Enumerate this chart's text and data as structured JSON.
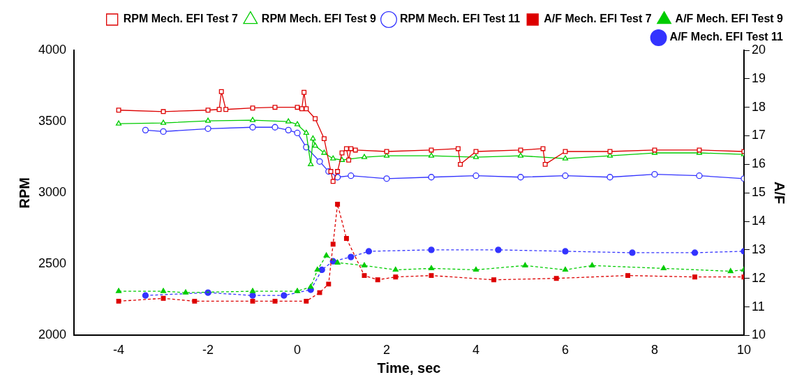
{
  "chart_data": {
    "type": "line",
    "xlabel": "Time, sec",
    "ylabel": "RPM",
    "y2label": "A/F",
    "xlim": [
      -5,
      10
    ],
    "xticks": [
      -4,
      -2,
      0,
      2,
      4,
      6,
      8,
      10
    ],
    "ylim": [
      2000,
      4000
    ],
    "yticks": [
      2000,
      2500,
      3000,
      3500,
      4000
    ],
    "y2lim": [
      10,
      20
    ],
    "y2ticks": [
      10,
      11,
      12,
      13,
      14,
      15,
      16,
      17,
      18,
      19,
      20
    ],
    "grid": false,
    "legend": "top right",
    "series": [
      {
        "name": "RPM Mech. EFI Test 7",
        "color": "#dd0000",
        "marker": "square",
        "line_style": "solid",
        "x": [
          -4,
          -3,
          -2,
          -1.75,
          -1.7,
          -1.6,
          -1,
          -0.5,
          0,
          0.1,
          0.15,
          0.2,
          0.4,
          0.6,
          0.75,
          0.8,
          0.9,
          1.0,
          1.1,
          1.15,
          1.2,
          1.3,
          2,
          3,
          3.6,
          3.65,
          4,
          5,
          5.5,
          5.55,
          6,
          7,
          8,
          9,
          10
        ],
        "values": [
          3580,
          3570,
          3580,
          3585,
          3710,
          3585,
          3595,
          3600,
          3600,
          3590,
          3705,
          3590,
          3520,
          3380,
          3150,
          3080,
          3150,
          3280,
          3310,
          3230,
          3310,
          3300,
          3290,
          3300,
          3310,
          3200,
          3290,
          3300,
          3310,
          3200,
          3290,
          3290,
          3300,
          3300,
          3290
        ]
      },
      {
        "name": "RPM Mech. EFI Test 9",
        "color": "#00cc00",
        "marker": "triangle",
        "line_style": "solid",
        "x": [
          -4,
          -3,
          -2,
          -1,
          -0.2,
          0,
          0.2,
          0.3,
          0.35,
          0.4,
          0.6,
          0.8,
          1,
          1.5,
          2,
          3,
          4,
          5,
          6,
          7,
          8,
          9,
          10
        ],
        "values": [
          3485,
          3490,
          3505,
          3510,
          3500,
          3480,
          3420,
          3200,
          3380,
          3330,
          3280,
          3240,
          3230,
          3250,
          3260,
          3260,
          3250,
          3260,
          3240,
          3260,
          3280,
          3280,
          3270
        ]
      },
      {
        "name": "RPM Mech. EFI Test 11",
        "color": "#3333ff",
        "marker": "circle",
        "line_style": "solid",
        "x": [
          -3.4,
          -3,
          -2,
          -1,
          -0.5,
          -0.2,
          0,
          0.2,
          0.5,
          0.7,
          0.9,
          1.2,
          2,
          3,
          4,
          5,
          6,
          7,
          8,
          9,
          10
        ],
        "values": [
          3440,
          3430,
          3450,
          3460,
          3460,
          3440,
          3420,
          3320,
          3220,
          3150,
          3110,
          3120,
          3100,
          3110,
          3120,
          3110,
          3120,
          3110,
          3130,
          3120,
          3100
        ]
      },
      {
        "name": "A/F Mech. EFI Test 7",
        "color": "#dd0000",
        "marker": "square",
        "line_style": "dashed",
        "axis": "y2",
        "x": [
          -4,
          -3,
          -2.3,
          -1,
          -0.5,
          0.2,
          0.5,
          0.7,
          0.8,
          0.9,
          1.1,
          1.5,
          1.8,
          2.2,
          3,
          4.4,
          5.8,
          7.4,
          8.9,
          10
        ],
        "values": [
          11.2,
          11.3,
          11.2,
          11.2,
          11.2,
          11.2,
          11.5,
          11.8,
          13.2,
          14.6,
          13.4,
          12.1,
          11.95,
          12.05,
          12.1,
          11.95,
          12,
          12.1,
          12.05,
          12.05
        ]
      },
      {
        "name": "A/F Mech. EFI Test 9",
        "color": "#00cc00",
        "marker": "triangle",
        "line_style": "dashed",
        "axis": "y2",
        "x": [
          -4,
          -3,
          -2.5,
          -1,
          0,
          0.3,
          0.45,
          0.65,
          0.9,
          1.5,
          2.2,
          3,
          4,
          5.1,
          6,
          6.6,
          8.2,
          9.7,
          10
        ],
        "values": [
          11.55,
          11.55,
          11.5,
          11.55,
          11.55,
          11.7,
          12.3,
          12.8,
          12.55,
          12.45,
          12.3,
          12.35,
          12.3,
          12.45,
          12.3,
          12.45,
          12.35,
          12.25,
          12.3
        ]
      },
      {
        "name": "A/F Mech. EFI Test 11",
        "color": "#3333ff",
        "marker": "circle",
        "line_style": "dashed",
        "axis": "y2",
        "x": [
          -3.4,
          -2,
          -1,
          -0.3,
          0.3,
          0.55,
          0.8,
          1.2,
          1.6,
          3,
          4.5,
          6,
          7.5,
          8.9,
          10
        ],
        "values": [
          11.4,
          11.5,
          11.4,
          11.4,
          11.6,
          12.3,
          12.6,
          12.75,
          12.95,
          13,
          13,
          12.95,
          12.9,
          12.9,
          12.95
        ]
      }
    ]
  }
}
